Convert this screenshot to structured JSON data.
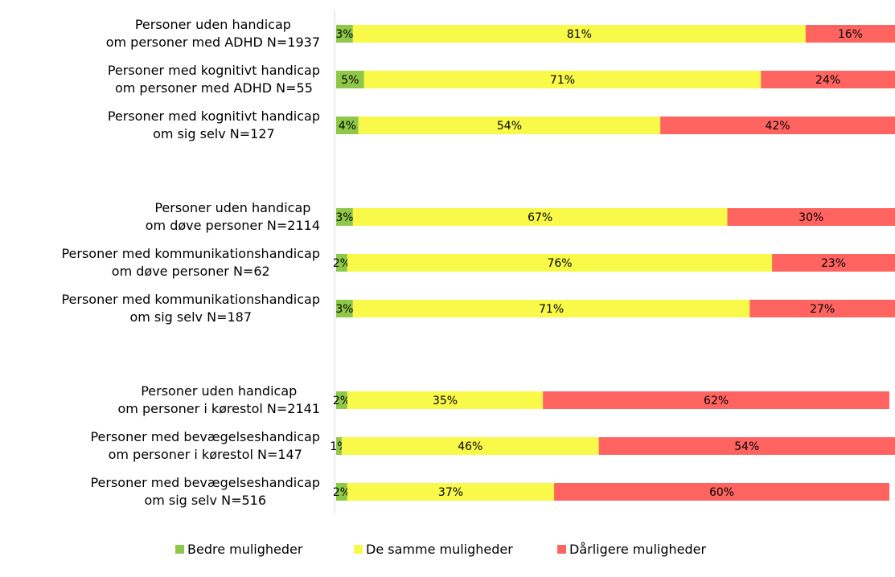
{
  "chart_data": {
    "type": "stacked-bar-horizontal",
    "categories": [
      "Personer uden handicap\nom personer med ADHD N=1937",
      "Personer med kognitivt handicap\nom personer med ADHD N=55",
      "Personer med kognitivt handicap\nom sig selv N=127",
      null,
      "Personer uden handicap\nom døve personer N=2114",
      "Personer med kommunikationshandicap\nom døve personer N=62",
      "Personer med kommunikationshandicap\nom sig selv N=187",
      null,
      "Personer uden handicap\nom personer i kørestol N=2141",
      "Personer med bevægelseshandicap\nom personer i kørestol N=147",
      "Personer med bevægelseshandicap\nom sig selv N=516"
    ],
    "series": [
      {
        "name": "Bedre muligheder",
        "color": "#8fc848",
        "values": [
          3,
          5,
          4,
          null,
          3,
          2,
          3,
          null,
          2,
          1,
          2
        ],
        "value_labels": [
          "3%",
          "5%",
          "4%",
          null,
          "3%",
          "2%",
          "3%",
          null,
          "2%",
          "1%",
          "2%"
        ]
      },
      {
        "name": "De samme muligheder",
        "color": "#f9f94a",
        "values": [
          81,
          71,
          54,
          null,
          67,
          76,
          71,
          null,
          35,
          46,
          37
        ],
        "value_labels": [
          "81%",
          "71%",
          "54%",
          null,
          "67%",
          "76%",
          "71%",
          null,
          "35%",
          "46%",
          "37%"
        ]
      },
      {
        "name": "Dårligere muligheder",
        "color": "#ff6461",
        "values": [
          16,
          24,
          42,
          null,
          30,
          23,
          27,
          null,
          62,
          54,
          60
        ],
        "value_labels": [
          "16%",
          "24%",
          "42%",
          null,
          "30%",
          "23%",
          "27%",
          null,
          "62%",
          "54%",
          "60%"
        ]
      }
    ],
    "xlim": [
      0,
      100
    ]
  }
}
